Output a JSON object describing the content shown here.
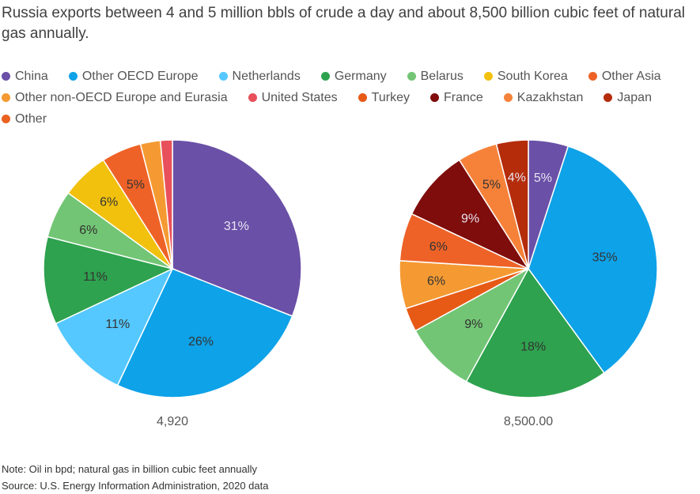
{
  "title": "Russia exports between 4 and 5 million bbls of crude a day and about 8,500 billion cubic feet of natural gas annually.",
  "legend": [
    {
      "name": "China",
      "color": "#6a50a7"
    },
    {
      "name": "Other OECD Europe",
      "color": "#0ea2e8"
    },
    {
      "name": "Netherlands",
      "color": "#55c8ff"
    },
    {
      "name": "Germany",
      "color": "#2ea24e"
    },
    {
      "name": "Belarus",
      "color": "#72c574"
    },
    {
      "name": "South Korea",
      "color": "#f2c10e"
    },
    {
      "name": "Other Asia",
      "color": "#ee6227"
    },
    {
      "name": "Other non-OECD Europe and Eurasia",
      "color": "#f59a32"
    },
    {
      "name": "United States",
      "color": "#e8505b"
    },
    {
      "name": "Turkey",
      "color": "#e65a16"
    },
    {
      "name": "France",
      "color": "#7f0d0b"
    },
    {
      "name": "Kazakhstan",
      "color": "#f6823a"
    },
    {
      "name": "Japan",
      "color": "#b42c0a"
    },
    {
      "name": "Other",
      "color": "#ea6220"
    }
  ],
  "chart_data": [
    {
      "type": "pie",
      "title": "",
      "total_label": "4,920",
      "slices": [
        {
          "name": "China",
          "value": 31,
          "label": "31%"
        },
        {
          "name": "Other OECD Europe",
          "value": 26,
          "label": "26%"
        },
        {
          "name": "Netherlands",
          "value": 11,
          "label": "11%"
        },
        {
          "name": "Germany",
          "value": 11,
          "label": "11%"
        },
        {
          "name": "Belarus",
          "value": 6,
          "label": "6%"
        },
        {
          "name": "South Korea",
          "value": 6,
          "label": "6%"
        },
        {
          "name": "Other Asia",
          "value": 5,
          "label": "5%"
        },
        {
          "name": "Other non-OECD Europe and Eurasia",
          "value": 2.5,
          "label": ""
        },
        {
          "name": "United States",
          "value": 1.5,
          "label": ""
        }
      ]
    },
    {
      "type": "pie",
      "title": "",
      "total_label": "8,500.00",
      "slices": [
        {
          "name": "China",
          "value": 5,
          "label": "5%"
        },
        {
          "name": "Other OECD Europe",
          "value": 35,
          "label": "35%"
        },
        {
          "name": "Germany",
          "value": 18,
          "label": "18%"
        },
        {
          "name": "Belarus",
          "value": 9,
          "label": "9%"
        },
        {
          "name": "Turkey",
          "value": 3,
          "label": ""
        },
        {
          "name": "Other non-OECD Europe and Eurasia",
          "value": 6,
          "label": "6%"
        },
        {
          "name": "Other Asia",
          "value": 6,
          "label": "6%"
        },
        {
          "name": "France",
          "value": 9,
          "label": "9%"
        },
        {
          "name": "Kazakhstan",
          "value": 5,
          "label": "5%"
        },
        {
          "name": "Japan",
          "value": 4,
          "label": "4%"
        }
      ]
    }
  ],
  "note": "Note: Oil in bpd; natural gas in billion cubic feet annually",
  "source": "Source: U.S. Energy Information Administration, 2020 data"
}
